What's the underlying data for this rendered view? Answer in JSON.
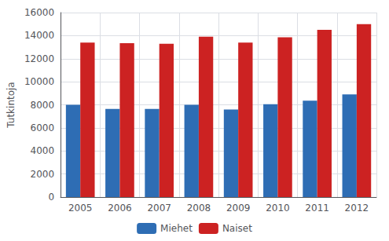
{
  "chart_data": {
    "type": "bar",
    "categories": [
      "2005",
      "2006",
      "2007",
      "2008",
      "2009",
      "2010",
      "2011",
      "2012"
    ],
    "series": [
      {
        "name": "Miehet",
        "color": "#2e6db4",
        "values": [
          8000,
          7650,
          7650,
          8000,
          7600,
          8050,
          8350,
          8900
        ]
      },
      {
        "name": "Naiset",
        "color": "#cc2222",
        "values": [
          13400,
          13350,
          13300,
          13900,
          13400,
          13850,
          14500,
          15000
        ]
      }
    ],
    "ylabel": "Tutkintoja",
    "ylim": [
      0,
      16000
    ],
    "yticks": [
      0,
      2000,
      4000,
      6000,
      8000,
      10000,
      12000,
      14000,
      16000
    ],
    "grid": true,
    "legend": "bottom"
  }
}
